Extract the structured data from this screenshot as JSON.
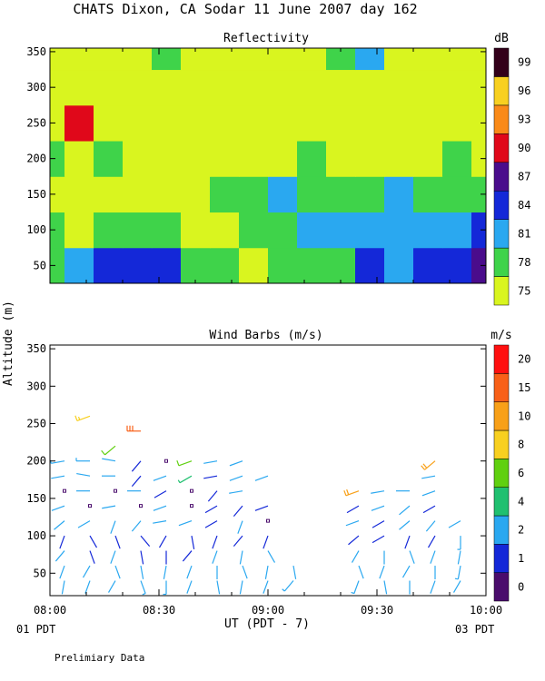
{
  "page": {
    "title": "CHATS Dixon, CA  Sodar  11 June 2007  day 162",
    "y_axis_label": "Altitude (m)",
    "x_axis_label": "UT  (PDT - 7)",
    "start_note": "01 PDT",
    "end_note": "03 PDT",
    "footer": "Prelimiary Data"
  },
  "chart_data": [
    {
      "type": "heatmap",
      "title": "Reflectivity",
      "unit": "dB",
      "x": [
        "08:00",
        "08:08",
        "08:16",
        "08:24",
        "08:32",
        "08:40",
        "08:48",
        "08:56",
        "09:04",
        "09:12",
        "09:20",
        "09:28",
        "09:36",
        "09:44",
        "09:52",
        "10:00"
      ],
      "y": [
        50,
        100,
        150,
        200,
        250,
        300,
        350
      ],
      "xlim": [
        "08:00",
        "10:00"
      ],
      "ylim": [
        25,
        355
      ],
      "yticks": [
        50,
        100,
        150,
        200,
        250,
        300,
        350
      ],
      "colorbar": {
        "levels": [
          75,
          78,
          81,
          84,
          87,
          90,
          93,
          96,
          99
        ],
        "labels": [
          "75",
          "78",
          "81",
          "84",
          "87",
          "90",
          "93",
          "96",
          "99"
        ],
        "colors": [
          "#d9f51f",
          "#3fd34a",
          "#2aa8f0",
          "#1428d8",
          "#4a0c8c",
          "#e0081a",
          "#fa8a18",
          "#f8d020",
          "#33001a"
        ]
      },
      "values": [
        [
          78,
          82,
          84,
          86,
          85,
          80,
          78,
          77,
          79,
          80,
          80,
          84,
          82,
          84,
          86,
          87
        ],
        [
          79,
          77,
          80,
          78,
          78,
          77,
          76,
          78,
          79,
          81,
          82,
          82,
          83,
          81,
          83,
          84
        ],
        [
          76,
          77,
          77,
          77,
          76,
          77,
          78,
          79,
          81,
          80,
          79,
          80,
          81,
          80,
          80,
          79
        ],
        [
          78,
          77,
          80,
          75,
          75,
          75,
          75,
          76,
          77,
          78,
          76,
          74,
          74,
          77,
          78,
          75
        ],
        [
          77,
          90,
          76,
          74,
          74,
          74,
          75,
          76,
          76,
          77,
          77,
          75,
          74,
          75,
          75,
          75
        ],
        [
          76,
          77,
          76,
          75,
          74,
          75,
          74,
          74,
          76,
          77,
          76,
          74,
          76,
          75,
          75,
          74
        ],
        [
          76,
          76,
          77,
          77,
          78,
          76,
          75,
          75,
          75,
          76,
          79,
          82,
          75,
          76,
          75,
          74
        ]
      ]
    },
    {
      "type": "scatter",
      "title": "Wind Barbs (m/s)",
      "unit": "m/s",
      "xlim": [
        "08:00",
        "10:00"
      ],
      "ylim": [
        20,
        355
      ],
      "yticks": [
        50,
        100,
        150,
        200,
        250,
        300,
        350
      ],
      "xticks": [
        "08:00",
        "08:30",
        "09:00",
        "09:30",
        "10:00"
      ],
      "colorbar": {
        "levels": [
          0,
          1,
          2,
          4,
          6,
          8,
          10,
          15,
          20
        ],
        "labels": [
          "0",
          "1",
          "2",
          "4",
          "6",
          "8",
          "10",
          "15",
          "20"
        ],
        "colors": [
          "#4a0c6c",
          "#1428d8",
          "#2aa8f0",
          "#20c070",
          "#60d010",
          "#f8d020",
          "#f8a018",
          "#f86018",
          "#ff1010"
        ]
      },
      "barb_times": [
        "08:04",
        "08:11",
        "08:18",
        "08:25",
        "08:32",
        "08:39",
        "08:46",
        "08:53",
        "09:00",
        "09:07",
        "09:25",
        "09:32",
        "09:39",
        "09:46",
        "09:53"
      ],
      "barb_heights": [
        20,
        40,
        60,
        80,
        100,
        120,
        140,
        160,
        180,
        200,
        220,
        240,
        260
      ],
      "speeds": [
        [
          2,
          2,
          3,
          3,
          3,
          3,
          3,
          3,
          3,
          3,
          3,
          3,
          3,
          3,
          4
        ],
        [
          2,
          2,
          2,
          3,
          3,
          2,
          2,
          2,
          2,
          3,
          3,
          2,
          2,
          2,
          2
        ],
        [
          2,
          2,
          2,
          2,
          2,
          2,
          2,
          2,
          2,
          2,
          2,
          2,
          2,
          2,
          3
        ],
        [
          2,
          1,
          2,
          1,
          1,
          1,
          2,
          2,
          2,
          null,
          2,
          2,
          2,
          2,
          2
        ],
        [
          1,
          1,
          1,
          1,
          1,
          1,
          1,
          1,
          1,
          null,
          1,
          1,
          1,
          1,
          3
        ],
        [
          2,
          2,
          2,
          2,
          2,
          2,
          1,
          2,
          0,
          null,
          2,
          1,
          2,
          2,
          2
        ],
        [
          2,
          0,
          2,
          0,
          2,
          0,
          1,
          1,
          1,
          null,
          1,
          2,
          2,
          1,
          null
        ],
        [
          0,
          2,
          0,
          2,
          1,
          0,
          1,
          2,
          null,
          null,
          12,
          2,
          2,
          2,
          null
        ],
        [
          2,
          2,
          2,
          1,
          2,
          4,
          1,
          2,
          2,
          null,
          null,
          null,
          null,
          2,
          null
        ],
        [
          3,
          3,
          2,
          1,
          0,
          7,
          2,
          2,
          null,
          null,
          null,
          null,
          null,
          12,
          null
        ],
        [
          null,
          null,
          7,
          null,
          null,
          null,
          null,
          null,
          null,
          null,
          null,
          null,
          null,
          null,
          null
        ],
        [
          null,
          null,
          null,
          17,
          null,
          null,
          null,
          null,
          null,
          null,
          null,
          null,
          null,
          null,
          null
        ],
        [
          null,
          8,
          null,
          null,
          null,
          null,
          null,
          null,
          null,
          null,
          null,
          null,
          null,
          null,
          null
        ]
      ],
      "directions": [
        [
          160,
          170,
          180,
          200,
          150,
          170,
          160,
          200,
          170,
          160,
          180,
          200,
          190,
          170,
          150
        ],
        [
          190,
          200,
          210,
          160,
          180,
          200,
          170,
          190,
          200,
          220,
          200,
          170,
          180,
          200,
          210
        ],
        [
          200,
          210,
          160,
          170,
          190,
          200,
          180,
          160,
          190,
          170,
          160,
          200,
          210,
          180,
          190
        ],
        [
          220,
          160,
          200,
          170,
          180,
          220,
          200,
          190,
          150,
          null,
          210,
          180,
          160,
          200,
          190
        ],
        [
          200,
          150,
          160,
          140,
          210,
          170,
          200,
          220,
          200,
          null,
          230,
          240,
          200,
          210,
          180
        ],
        [
          230,
          240,
          200,
          220,
          260,
          250,
          240,
          200,
          200,
          null,
          250,
          240,
          230,
          220,
          240
        ],
        [
          250,
          0,
          260,
          0,
          250,
          0,
          240,
          220,
          250,
          null,
          240,
          250,
          230,
          240,
          null
        ],
        [
          0,
          270,
          0,
          270,
          240,
          0,
          220,
          260,
          null,
          null,
          250,
          260,
          270,
          250,
          null
        ],
        [
          260,
          280,
          270,
          220,
          250,
          240,
          260,
          250,
          250,
          null,
          null,
          null,
          null,
          260,
          null
        ],
        [
          260,
          270,
          280,
          220,
          0,
          250,
          260,
          250,
          null,
          null,
          null,
          null,
          null,
          230,
          null
        ],
        [
          null,
          null,
          230,
          null,
          null,
          null,
          null,
          null,
          null,
          null,
          null,
          null,
          null,
          null,
          null
        ],
        [
          null,
          null,
          null,
          270,
          null,
          null,
          null,
          null,
          null,
          null,
          null,
          null,
          null,
          null,
          null
        ],
        [
          null,
          250,
          null,
          null,
          null,
          null,
          null,
          null,
          null,
          null,
          null,
          null,
          null,
          null,
          null
        ]
      ]
    }
  ]
}
